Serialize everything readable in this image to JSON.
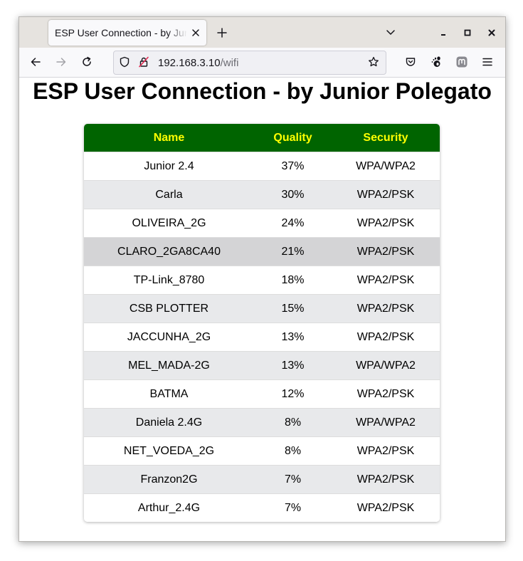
{
  "browser": {
    "tab_title": "ESP User Connection - by Junior Polegato",
    "url_host": "192.168.3.10",
    "url_path": "/wifi"
  },
  "page": {
    "title": "ESP User Connection - by Junior Polegato"
  },
  "table": {
    "headers": {
      "name": "Name",
      "quality": "Quality",
      "security": "Security"
    },
    "header_bg": "#006400",
    "header_text": "#ffff00",
    "rows": [
      {
        "name": "Junior 2.4",
        "quality": "37%",
        "security": "WPA/WPA2"
      },
      {
        "name": "Carla",
        "quality": "30%",
        "security": "WPA2/PSK"
      },
      {
        "name": "OLIVEIRA_2G",
        "quality": "24%",
        "security": "WPA2/PSK"
      },
      {
        "name": "CLARO_2GA8CA40",
        "quality": "21%",
        "security": "WPA2/PSK"
      },
      {
        "name": "TP-Link_8780",
        "quality": "18%",
        "security": "WPA2/PSK"
      },
      {
        "name": "CSB PLOTTER",
        "quality": "15%",
        "security": "WPA2/PSK"
      },
      {
        "name": "JACCUNHA_2G",
        "quality": "13%",
        "security": "WPA2/PSK"
      },
      {
        "name": "MEL_MADA-2G",
        "quality": "13%",
        "security": "WPA/WPA2"
      },
      {
        "name": "BATMA",
        "quality": "12%",
        "security": "WPA2/PSK"
      },
      {
        "name": "Daniela 2.4G",
        "quality": "8%",
        "security": "WPA/WPA2"
      },
      {
        "name": "NET_VOEDA_2G",
        "quality": "8%",
        "security": "WPA2/PSK"
      },
      {
        "name": "Franzon2G",
        "quality": "7%",
        "security": "WPA2/PSK"
      },
      {
        "name": "Arthur_2.4G",
        "quality": "7%",
        "security": "WPA2/PSK"
      }
    ]
  }
}
